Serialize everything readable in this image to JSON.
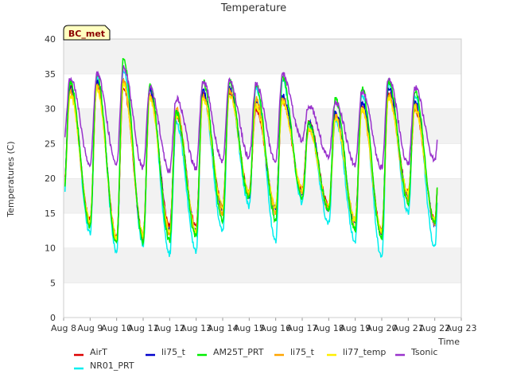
{
  "chart_data": {
    "type": "line",
    "title": "Temperature",
    "xlabel": "Time",
    "ylabel": "Temperatures (C)",
    "badge": "BC_met",
    "ylim": [
      0,
      40
    ],
    "yticks": [
      0,
      5,
      10,
      15,
      20,
      25,
      30,
      35,
      40
    ],
    "xlim": [
      8,
      23
    ],
    "xticks": [
      {
        "value": 8,
        "label": "Aug 8"
      },
      {
        "value": 9,
        "label": "Aug 9"
      },
      {
        "value": 10,
        "label": "Aug 10"
      },
      {
        "value": 11,
        "label": "Aug 11"
      },
      {
        "value": 12,
        "label": "Aug 12"
      },
      {
        "value": 13,
        "label": "Aug 13"
      },
      {
        "value": 14,
        "label": "Aug 14"
      },
      {
        "value": 15,
        "label": "Aug 15"
      },
      {
        "value": 16,
        "label": "Aug 16"
      },
      {
        "value": 17,
        "label": "Aug 17"
      },
      {
        "value": 18,
        "label": "Aug 18"
      },
      {
        "value": 19,
        "label": "Aug 19"
      },
      {
        "value": 20,
        "label": "Aug 20"
      },
      {
        "value": 21,
        "label": "Aug 21"
      },
      {
        "value": 22,
        "label": "Aug 22"
      },
      {
        "value": 23,
        "label": "Aug 23"
      }
    ],
    "grid": "horizontal bands",
    "legend_position": "bottom",
    "day_start": 8,
    "series": [
      {
        "name": "AirT",
        "color": "#dd0000",
        "min": [
          18.5,
          14.0,
          11.5,
          12.0,
          13.0,
          13.0,
          16.0,
          18.0,
          16.0,
          18.5,
          16.0,
          14.0,
          12.5,
          18.0,
          14.0
        ],
        "max": [
          33.0,
          33.5,
          33.0,
          32.0,
          29.0,
          32.0,
          32.5,
          30.0,
          31.0,
          28.0,
          29.0,
          30.5,
          32.0,
          30.0,
          30.0
        ]
      },
      {
        "name": "li75_t",
        "color": "#0000cc",
        "min": [
          18.0,
          13.5,
          11.0,
          11.5,
          12.5,
          12.5,
          15.5,
          17.5,
          15.5,
          18.0,
          15.5,
          13.5,
          12.0,
          17.5,
          13.5
        ],
        "max": [
          33.0,
          34.0,
          34.0,
          32.5,
          29.5,
          32.5,
          33.0,
          31.0,
          32.0,
          28.0,
          29.5,
          31.0,
          33.0,
          31.0,
          30.5
        ]
      },
      {
        "name": "AM25T_PRT",
        "color": "#00ee00",
        "min": [
          17.0,
          13.0,
          10.5,
          11.0,
          11.0,
          11.5,
          14.0,
          17.0,
          14.0,
          17.0,
          15.5,
          12.5,
          11.5,
          16.5,
          13.5
        ],
        "max": [
          34.0,
          35.0,
          37.0,
          33.5,
          29.5,
          34.0,
          34.0,
          33.5,
          34.5,
          28.0,
          31.5,
          33.0,
          34.0,
          32.5,
          31.0
        ]
      },
      {
        "name": "li75_t",
        "color": "#ffa500",
        "min": [
          17.5,
          13.5,
          11.0,
          11.5,
          12.0,
          12.0,
          15.0,
          17.5,
          15.0,
          18.0,
          15.5,
          13.0,
          12.0,
          17.0,
          13.5
        ],
        "max": [
          32.5,
          33.5,
          34.0,
          32.0,
          30.0,
          32.0,
          32.5,
          31.5,
          31.5,
          27.0,
          29.0,
          30.0,
          32.0,
          30.5,
          30.0
        ]
      },
      {
        "name": "li77_temp",
        "color": "#ffee00",
        "min": [
          18.0,
          14.0,
          11.5,
          12.0,
          12.5,
          12.5,
          16.0,
          18.0,
          16.0,
          18.5,
          16.0,
          14.0,
          12.5,
          18.0,
          14.0
        ],
        "max": [
          32.0,
          33.0,
          33.5,
          31.5,
          29.0,
          31.5,
          32.0,
          30.5,
          31.0,
          27.0,
          28.5,
          30.0,
          31.5,
          30.0,
          29.5
        ]
      },
      {
        "name": "Tsonic",
        "color": "#9933cc",
        "min": [
          25.0,
          22.0,
          22.0,
          21.5,
          21.0,
          21.5,
          22.5,
          23.0,
          22.5,
          25.5,
          23.0,
          22.0,
          21.5,
          22.0,
          22.5
        ],
        "max": [
          34.5,
          35.0,
          36.0,
          33.0,
          31.5,
          34.0,
          34.0,
          33.5,
          35.0,
          30.5,
          31.0,
          32.5,
          34.5,
          33.0,
          32.0
        ]
      },
      {
        "name": "NR01_PRT",
        "color": "#00eeee",
        "min": [
          16.5,
          12.0,
          9.5,
          10.5,
          9.0,
          9.5,
          12.5,
          16.0,
          11.0,
          16.5,
          13.5,
          11.0,
          8.5,
          15.0,
          10.0
        ],
        "max": [
          33.5,
          34.5,
          35.5,
          33.0,
          28.0,
          32.0,
          32.5,
          33.0,
          34.0,
          27.5,
          28.5,
          32.0,
          33.5,
          32.0,
          31.0
        ]
      }
    ],
    "legend_rows": [
      [
        "AirT",
        "li75_t",
        "AM25T_PRT",
        "li75_t",
        "li77_temp",
        "Tsonic"
      ],
      [
        "NR01_PRT"
      ]
    ]
  }
}
